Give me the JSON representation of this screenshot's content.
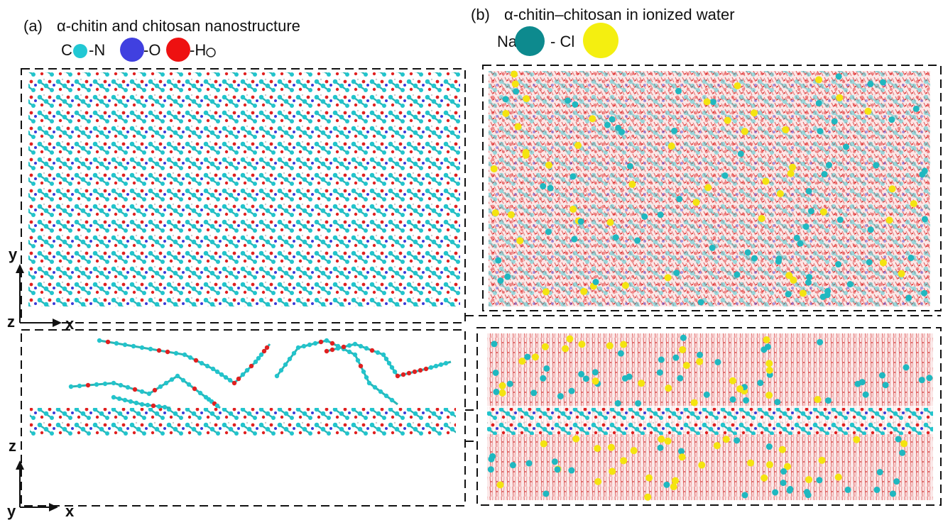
{
  "panels": [
    {
      "label": "(a)",
      "title": "α-chitin and chitosan nanostructure",
      "legend": [
        "C",
        "-N",
        "-O",
        "-H"
      ],
      "axes": [
        {
          "up": "y",
          "origin": "z",
          "right": "x"
        },
        {
          "up": "z",
          "origin": "y",
          "right": "x"
        }
      ]
    },
    {
      "label": "(b)",
      "title": "α-chitin–chitosan in ionized water",
      "legend": [
        "Na",
        "- Cl"
      ]
    }
  ]
}
